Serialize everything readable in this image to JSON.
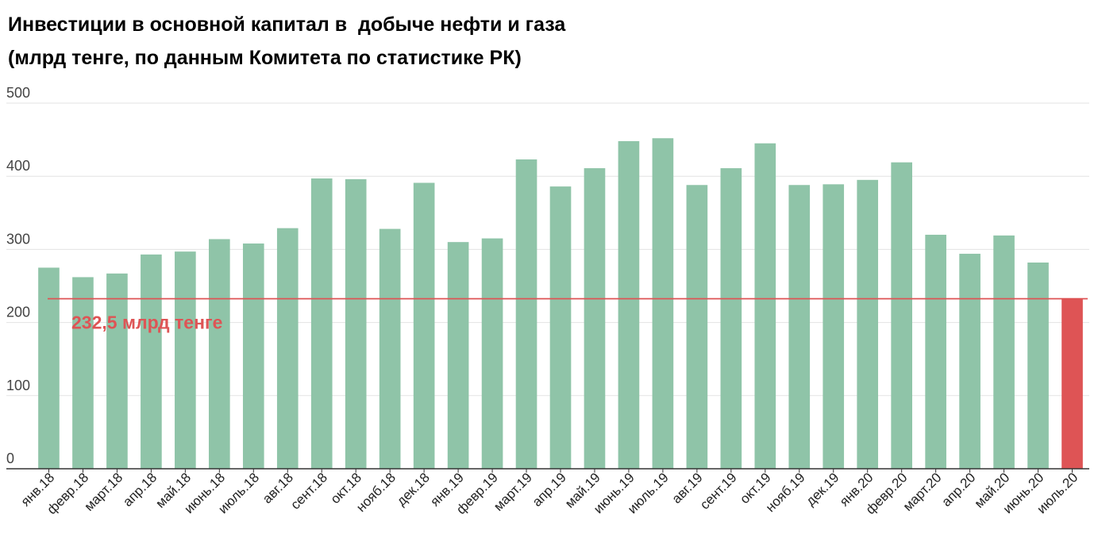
{
  "chart_data": {
    "type": "bar",
    "title": "Инвестиции в основной капитал в  добыче нефти и газа",
    "subtitle": "(млрд тенге, по данным Комитета по статистике РК)",
    "xlabel": "",
    "ylabel": "",
    "ylim": [
      0,
      500
    ],
    "yticks": [
      0,
      100,
      200,
      300,
      400,
      500
    ],
    "grid": true,
    "categories": [
      "янв.18",
      "февр.18",
      "март.18",
      "апр.18",
      "май.18",
      "июнь.18",
      "июль.18",
      "авг.18",
      "сент.18",
      "окт.18",
      "нояб.18",
      "дек.18",
      "янв.19",
      "февр.19",
      "март.19",
      "апр.19",
      "май.19",
      "июнь.19",
      "июль.19",
      "авг.19",
      "сент.19",
      "окт.19",
      "нояб.19",
      "дек.19",
      "янв.20",
      "февр.20",
      "март.20",
      "апр.20",
      "май.20",
      "июнь.20",
      "июль.20"
    ],
    "values": [
      275,
      262,
      267,
      293,
      297,
      314,
      308,
      329,
      397,
      396,
      328,
      391,
      310,
      315,
      423,
      386,
      411,
      448,
      452,
      388,
      411,
      445,
      388,
      389,
      395,
      419,
      320,
      294,
      319,
      282,
      232.5
    ],
    "colors": {
      "bar": "#8fc4a8",
      "highlight": "#de5455",
      "reference_line": "#de5455",
      "grid": "#e3e3e3",
      "axis": "#333333"
    },
    "highlight_index": 30,
    "reference_line": {
      "value": 232.5,
      "label": "232,5 млрд тенге"
    }
  }
}
